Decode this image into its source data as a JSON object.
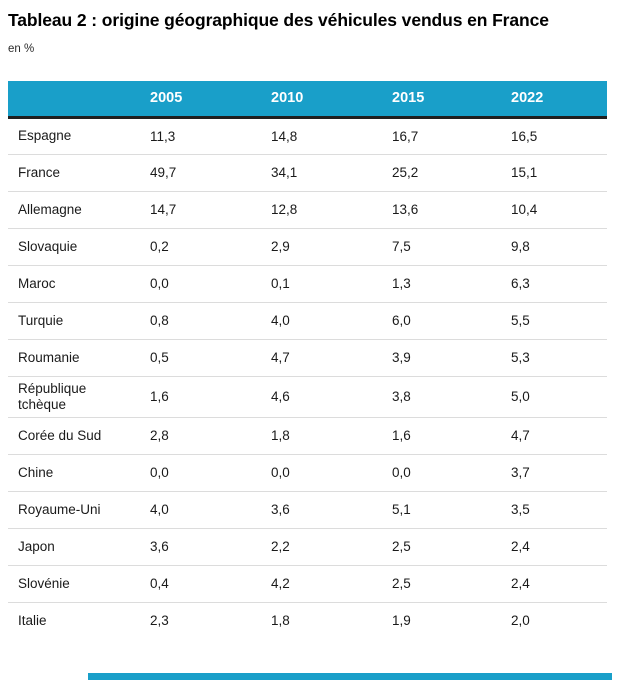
{
  "title": "Tableau 2 : origine géographique des véhicules vendus en France",
  "subtitle": "en %",
  "accent_color": "#199fc9",
  "header_text_color": "#ffffff",
  "header_border_color": "#1f1f1f",
  "row_separator_color": "#dcdcdc",
  "table": {
    "label_column_header": "",
    "columns": [
      "2005",
      "2010",
      "2015",
      "2022"
    ],
    "rows": [
      {
        "label": "Espagne",
        "values": [
          "11,3",
          "14,8",
          "16,7",
          "16,5"
        ]
      },
      {
        "label": "France",
        "values": [
          "49,7",
          "34,1",
          "25,2",
          "15,1"
        ]
      },
      {
        "label": "Allemagne",
        "values": [
          "14,7",
          "12,8",
          "13,6",
          "10,4"
        ]
      },
      {
        "label": "Slovaquie",
        "values": [
          "0,2",
          "2,9",
          "7,5",
          "9,8"
        ]
      },
      {
        "label": "Maroc",
        "values": [
          "0,0",
          "0,1",
          "1,3",
          "6,3"
        ]
      },
      {
        "label": "Turquie",
        "values": [
          "0,8",
          "4,0",
          "6,0",
          "5,5"
        ]
      },
      {
        "label": "Roumanie",
        "values": [
          "0,5",
          "4,7",
          "3,9",
          "5,3"
        ]
      },
      {
        "label": "République tchèque",
        "values": [
          "1,6",
          "4,6",
          "3,8",
          "5,0"
        ]
      },
      {
        "label": "Corée du Sud",
        "values": [
          "2,8",
          "1,8",
          "1,6",
          "4,7"
        ]
      },
      {
        "label": "Chine",
        "values": [
          "0,0",
          "0,0",
          "0,0",
          "3,7"
        ]
      },
      {
        "label": "Royaume-Uni",
        "values": [
          "4,0",
          "3,6",
          "5,1",
          "3,5"
        ]
      },
      {
        "label": "Japon",
        "values": [
          "3,6",
          "2,2",
          "2,5",
          "2,4"
        ]
      },
      {
        "label": "Slovénie",
        "values": [
          "0,4",
          "4,2",
          "2,5",
          "2,4"
        ]
      },
      {
        "label": "Italie",
        "values": [
          "2,3",
          "1,8",
          "1,9",
          "2,0"
        ]
      }
    ]
  },
  "chart_data": {
    "type": "table",
    "title": "Tableau 2 : origine géographique des véhicules vendus en France",
    "unit": "en %",
    "categories": [
      2005,
      2010,
      2015,
      2022
    ],
    "series": [
      {
        "name": "Espagne",
        "values": [
          11.3,
          14.8,
          16.7,
          16.5
        ]
      },
      {
        "name": "France",
        "values": [
          49.7,
          34.1,
          25.2,
          15.1
        ]
      },
      {
        "name": "Allemagne",
        "values": [
          14.7,
          12.8,
          13.6,
          10.4
        ]
      },
      {
        "name": "Slovaquie",
        "values": [
          0.2,
          2.9,
          7.5,
          9.8
        ]
      },
      {
        "name": "Maroc",
        "values": [
          0.0,
          0.1,
          1.3,
          6.3
        ]
      },
      {
        "name": "Turquie",
        "values": [
          0.8,
          4.0,
          6.0,
          5.5
        ]
      },
      {
        "name": "Roumanie",
        "values": [
          0.5,
          4.7,
          3.9,
          5.3
        ]
      },
      {
        "name": "République tchèque",
        "values": [
          1.6,
          4.6,
          3.8,
          5.0
        ]
      },
      {
        "name": "Corée du Sud",
        "values": [
          2.8,
          1.8,
          1.6,
          4.7
        ]
      },
      {
        "name": "Chine",
        "values": [
          0.0,
          0.0,
          0.0,
          3.7
        ]
      },
      {
        "name": "Royaume-Uni",
        "values": [
          4.0,
          3.6,
          5.1,
          3.5
        ]
      },
      {
        "name": "Japon",
        "values": [
          3.6,
          2.2,
          2.5,
          2.4
        ]
      },
      {
        "name": "Slovénie",
        "values": [
          0.4,
          4.2,
          2.5,
          2.4
        ]
      },
      {
        "name": "Italie",
        "values": [
          2.3,
          1.8,
          1.9,
          2.0
        ]
      }
    ]
  }
}
